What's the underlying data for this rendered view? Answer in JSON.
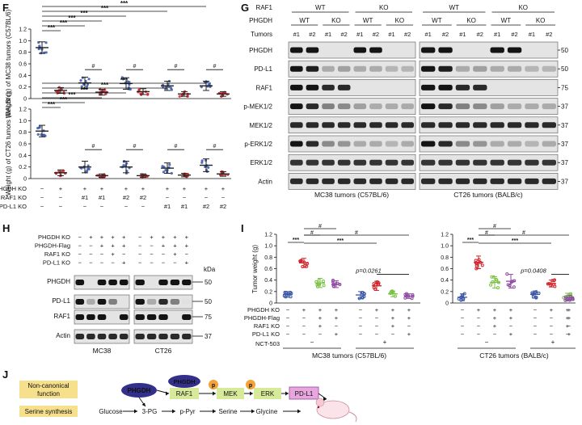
{
  "panel_labels": {
    "F": "F",
    "G": "G",
    "H": "H",
    "I": "I",
    "J": "J"
  },
  "colors": {
    "blue": "#3a57a6",
    "red": "#d0232a",
    "green": "#7ac143",
    "purple": "#8e4aa3",
    "navy": "#33308c",
    "yellow": "#f6e08c",
    "orange": "#f2a33a",
    "lightgreen": "#d6ea9a",
    "pink": "#e9a6de"
  },
  "panel_f": {
    "chart_data": [
      {
        "type": "scatter",
        "ylabel": "Weight (g) of MC38 tumors (C57BL/6)",
        "ylim": [
          0,
          1.2
        ],
        "yticks": [
          "0",
          "0.2",
          "0.4",
          "0.6",
          "0.8",
          "1.0",
          "1.2"
        ],
        "groups": [
          {
            "mean": 0.88,
            "sd": 0.1,
            "color": "blue"
          },
          {
            "mean": 0.14,
            "sd": 0.05,
            "color": "red"
          },
          {
            "mean": 0.27,
            "sd": 0.1,
            "color": "blue"
          },
          {
            "mean": 0.11,
            "sd": 0.05,
            "color": "red"
          },
          {
            "mean": 0.26,
            "sd": 0.1,
            "color": "blue"
          },
          {
            "mean": 0.12,
            "sd": 0.05,
            "color": "red"
          },
          {
            "mean": 0.22,
            "sd": 0.08,
            "color": "blue"
          },
          {
            "mean": 0.08,
            "sd": 0.04,
            "color": "red"
          },
          {
            "mean": 0.22,
            "sd": 0.08,
            "color": "blue"
          },
          {
            "mean": 0.08,
            "sd": 0.04,
            "color": "red"
          }
        ],
        "sig_main": "***",
        "sig_pair": "#"
      },
      {
        "type": "scatter",
        "ylabel": "Weight (g) of CT26 tumors (BALB/c)",
        "ylim": [
          0,
          1.2
        ],
        "yticks": [
          "0",
          "0.2",
          "0.4",
          "0.6",
          "0.8",
          "1.0",
          "1.2"
        ],
        "groups": [
          {
            "mean": 0.82,
            "sd": 0.1,
            "color": "blue"
          },
          {
            "mean": 0.1,
            "sd": 0.05,
            "color": "red"
          },
          {
            "mean": 0.2,
            "sd": 0.1,
            "color": "blue"
          },
          {
            "mean": 0.05,
            "sd": 0.03,
            "color": "red"
          },
          {
            "mean": 0.2,
            "sd": 0.1,
            "color": "blue"
          },
          {
            "mean": 0.05,
            "sd": 0.03,
            "color": "red"
          },
          {
            "mean": 0.18,
            "sd": 0.09,
            "color": "blue"
          },
          {
            "mean": 0.06,
            "sd": 0.03,
            "color": "red"
          },
          {
            "mean": 0.23,
            "sd": 0.11,
            "color": "blue"
          },
          {
            "mean": 0.08,
            "sd": 0.04,
            "color": "red"
          }
        ],
        "sig_main": "***",
        "sig_pair": "#"
      }
    ],
    "rows": [
      {
        "label": "PHGDH KO",
        "cells": [
          "−",
          "+",
          "+",
          "+",
          "+",
          "+",
          "+",
          "+",
          "+",
          "+"
        ]
      },
      {
        "label": "RAF1 KO",
        "cells": [
          "−",
          "−",
          "#1",
          "#1",
          "#2",
          "#2",
          "−",
          "−",
          "−",
          "−"
        ]
      },
      {
        "label": "PD-L1 KO",
        "cells": [
          "−",
          "−",
          "−",
          "−",
          "−",
          "−",
          "#1",
          "#1",
          "#2",
          "#2"
        ]
      }
    ]
  },
  "panel_g": {
    "header": {
      "raf1": "RAF1",
      "phgdh": "PHGDH",
      "tumors": "Tumors",
      "wt": "WT",
      "ko": "KO",
      "n1": "#1",
      "n2": "#2"
    },
    "rows": [
      {
        "label": "PHGDH",
        "kda": "50"
      },
      {
        "label": "PD-L1",
        "kda": "50"
      },
      {
        "label": "RAF1",
        "kda": "75"
      },
      {
        "label": "p-MEK1/2",
        "kda": "37"
      },
      {
        "label": "MEK1/2",
        "kda": "37"
      },
      {
        "label": "p-ERK1/2",
        "kda": "37"
      },
      {
        "label": "ERK1/2",
        "kda": "37"
      },
      {
        "label": "Actin",
        "kda": "37"
      }
    ],
    "captions": [
      "MC38 tumors (C57BL/6)",
      "CT26 tumors (BALB/c)"
    ]
  },
  "panel_h": {
    "rows_top": [
      {
        "label": "PHGDH KO",
        "cells": [
          "−",
          "+",
          "+",
          "+",
          "+",
          "−",
          "+",
          "+",
          "+",
          "+"
        ]
      },
      {
        "label": "PHGDH-Flag",
        "cells": [
          "−",
          "−",
          "+",
          "+",
          "+",
          "−",
          "−",
          "+",
          "+",
          "+"
        ]
      },
      {
        "label": "RAF1 KO",
        "cells": [
          "−",
          "−",
          "−",
          "+",
          "−",
          "−",
          "−",
          "−",
          "+",
          "−"
        ]
      },
      {
        "label": "PD-L1 KO",
        "cells": [
          "−",
          "−",
          "−",
          "−",
          "+",
          "−",
          "−",
          "−",
          "−",
          "+"
        ]
      }
    ],
    "blots": [
      {
        "label": "PHGDH",
        "kda": "50"
      },
      {
        "label": "PD-L1",
        "kda": "50"
      },
      {
        "label": "RAF1",
        "kda": "75"
      },
      {
        "label": "Actin",
        "kda": "37"
      }
    ],
    "kda_label": "kDa",
    "captions": [
      "MC38",
      "CT26"
    ]
  },
  "panel_i": {
    "chart_data": {
      "type": "scatter",
      "ylabel": "Tumor weight (g)",
      "ylim": [
        0,
        1.2
      ],
      "yticks": [
        "0",
        "0.2",
        "0.4",
        "0.6",
        "0.8",
        "1.0",
        "1.2"
      ],
      "groups": [
        {
          "mean": 0.15,
          "sd": 0.05,
          "color": "blue"
        },
        {
          "mean": 0.7,
          "sd": 0.08,
          "color": "red"
        },
        {
          "mean": 0.35,
          "sd": 0.08,
          "color": "green"
        },
        {
          "mean": 0.33,
          "sd": 0.06,
          "color": "purple"
        },
        {
          "mean": 0.14,
          "sd": 0.06,
          "color": "blue"
        },
        {
          "mean": 0.3,
          "sd": 0.08,
          "color": "red"
        },
        {
          "mean": 0.16,
          "sd": 0.05,
          "color": "green"
        },
        {
          "mean": 0.12,
          "sd": 0.04,
          "color": "purple"
        },
        {
          "mean": 0.1,
          "sd": 0.06,
          "color": "blue"
        },
        {
          "mean": 0.71,
          "sd": 0.11,
          "color": "red"
        },
        {
          "mean": 0.36,
          "sd": 0.1,
          "color": "green"
        },
        {
          "mean": 0.38,
          "sd": 0.12,
          "color": "purple"
        },
        {
          "mean": 0.15,
          "sd": 0.06,
          "color": "blue"
        },
        {
          "mean": 0.34,
          "sd": 0.06,
          "color": "red"
        },
        {
          "mean": 0.11,
          "sd": 0.06,
          "color": "green"
        },
        {
          "mean": 0.09,
          "sd": 0.04,
          "color": "purple"
        }
      ],
      "pvalue_a": "p=0.0261",
      "pvalue_b": "p=0.0408",
      "sig": "***",
      "hash": "#"
    },
    "rows": [
      {
        "label": "PHGDH KO",
        "cells": [
          "−",
          "+",
          "+",
          "+",
          "−",
          "+",
          "+",
          "+",
          "−",
          "+",
          "+",
          "+",
          "−",
          "+",
          "+",
          "+"
        ]
      },
      {
        "label": "PHGDH-Flag",
        "cells": [
          "−",
          "−",
          "+",
          "+",
          "−",
          "−",
          "+",
          "+",
          "−",
          "−",
          "+",
          "+",
          "−",
          "−",
          "+",
          "+"
        ]
      },
      {
        "label": "RAF1 KO",
        "cells": [
          "−",
          "−",
          "+",
          "−",
          "−",
          "−",
          "+",
          "−",
          "−",
          "−",
          "+",
          "−",
          "−",
          "−",
          "+",
          "−"
        ]
      },
      {
        "label": "PD-L1 KO",
        "cells": [
          "−",
          "−",
          "−",
          "+",
          "−",
          "−",
          "−",
          "+",
          "−",
          "−",
          "−",
          "+",
          "−",
          "−",
          "−",
          "+"
        ]
      }
    ],
    "nct": {
      "label": "NCT-503",
      "minus": "−",
      "plus": "+"
    },
    "captions": [
      "MC38 tumors (C57BL/6)",
      "CT26 tumors (BALB/c)"
    ]
  },
  "panel_j": {
    "labels": {
      "noncanonical": "Non-canonical function",
      "serine": "Serine synthesis"
    },
    "nodes": {
      "phgdh": "PHGDH",
      "phgdh2": "PHGDH",
      "raf1": "RAF1",
      "mek": "MEK",
      "erk": "ERK",
      "pdl1": "PD-L1",
      "p": "p"
    },
    "serine_path": [
      "Glucose",
      "3-PG",
      "p-Pyr",
      "Serine",
      "Glycine"
    ]
  }
}
